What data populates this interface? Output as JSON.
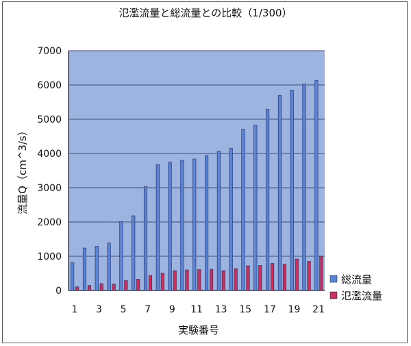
{
  "chart_data": {
    "type": "bar",
    "title": "氾濫流量と総流量との比較（1/300）",
    "xlabel": "実験番号",
    "ylabel": "流量Q（cm^3/s）",
    "ylim": [
      0,
      7000
    ],
    "yticks": [
      0,
      1000,
      2000,
      3000,
      4000,
      5000,
      6000,
      7000
    ],
    "categories": [
      "1",
      "2",
      "3",
      "4",
      "5",
      "6",
      "7",
      "8",
      "9",
      "10",
      "11",
      "12",
      "13",
      "14",
      "15",
      "16",
      "17",
      "18",
      "19",
      "20",
      "21"
    ],
    "xtick_labels": [
      "1",
      "",
      "3",
      "",
      "5",
      "",
      "7",
      "",
      "9",
      "",
      "11",
      "",
      "13",
      "",
      "15",
      "",
      "17",
      "",
      "19",
      "",
      "21"
    ],
    "grid": true,
    "legend_position": "right",
    "plot_background": "#9db3e0",
    "series": [
      {
        "name": "総流量",
        "color": "#5b83d6",
        "values": [
          820,
          1240,
          1290,
          1390,
          2010,
          2180,
          3030,
          3680,
          3750,
          3800,
          3840,
          3940,
          4070,
          4150,
          4710,
          4830,
          5290,
          5690,
          5850,
          6030,
          6130
        ]
      },
      {
        "name": "氾濫流量",
        "color": "#c8305f",
        "values": [
          110,
          150,
          200,
          190,
          290,
          330,
          440,
          510,
          580,
          600,
          610,
          620,
          580,
          640,
          720,
          730,
          790,
          770,
          920,
          850,
          1000
        ]
      }
    ]
  }
}
